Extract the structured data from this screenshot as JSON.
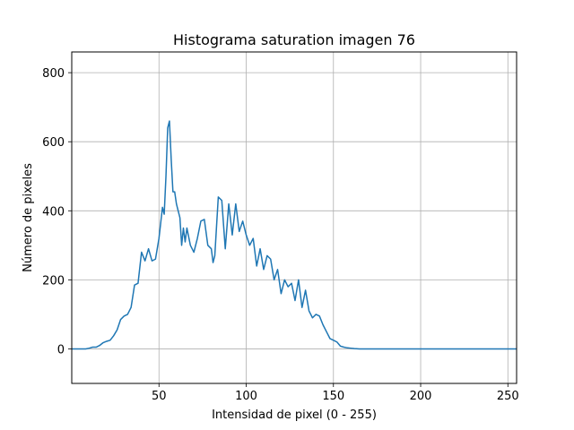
{
  "chart_data": {
    "type": "line",
    "title": "Histograma saturation imagen 76",
    "xlabel": "Intensidad de pixel (0 - 255)",
    "ylabel": "Número de pixeles",
    "xlim": [
      0,
      255
    ],
    "ylim": [
      -100,
      860
    ],
    "xticks": [
      50,
      100,
      150,
      200,
      250
    ],
    "yticks": [
      0,
      200,
      400,
      600,
      800
    ],
    "grid": true,
    "legend": "none",
    "series": [
      {
        "color": "#1f77b4",
        "x": [
          0,
          2,
          4,
          6,
          8,
          10,
          12,
          14,
          16,
          18,
          20,
          22,
          24,
          26,
          28,
          30,
          32,
          34,
          36,
          38,
          40,
          42,
          44,
          46,
          48,
          50,
          52,
          53,
          54,
          55,
          56,
          57,
          58,
          59,
          60,
          61,
          62,
          63,
          64,
          65,
          66,
          68,
          70,
          72,
          74,
          76,
          78,
          80,
          81,
          82,
          84,
          86,
          88,
          90,
          92,
          94,
          96,
          98,
          100,
          102,
          104,
          106,
          108,
          110,
          112,
          114,
          116,
          118,
          120,
          122,
          124,
          126,
          128,
          130,
          132,
          134,
          136,
          138,
          140,
          142,
          144,
          146,
          148,
          150,
          152,
          154,
          156,
          158,
          160,
          162,
          165,
          170,
          180,
          200,
          220,
          240,
          255
        ],
        "y": [
          0,
          0,
          0,
          0,
          0,
          2,
          5,
          5,
          10,
          18,
          22,
          25,
          38,
          55,
          85,
          95,
          100,
          120,
          185,
          190,
          280,
          255,
          290,
          255,
          260,
          320,
          410,
          390,
          500,
          640,
          660,
          550,
          455,
          455,
          420,
          400,
          380,
          300,
          350,
          310,
          350,
          300,
          280,
          320,
          370,
          375,
          300,
          290,
          250,
          270,
          440,
          430,
          290,
          420,
          330,
          420,
          340,
          370,
          330,
          300,
          320,
          240,
          290,
          230,
          270,
          260,
          200,
          230,
          160,
          200,
          180,
          190,
          140,
          200,
          120,
          170,
          110,
          90,
          100,
          95,
          70,
          50,
          30,
          25,
          20,
          8,
          5,
          3,
          2,
          1,
          0,
          0,
          0,
          0,
          0,
          0,
          0
        ]
      }
    ]
  }
}
